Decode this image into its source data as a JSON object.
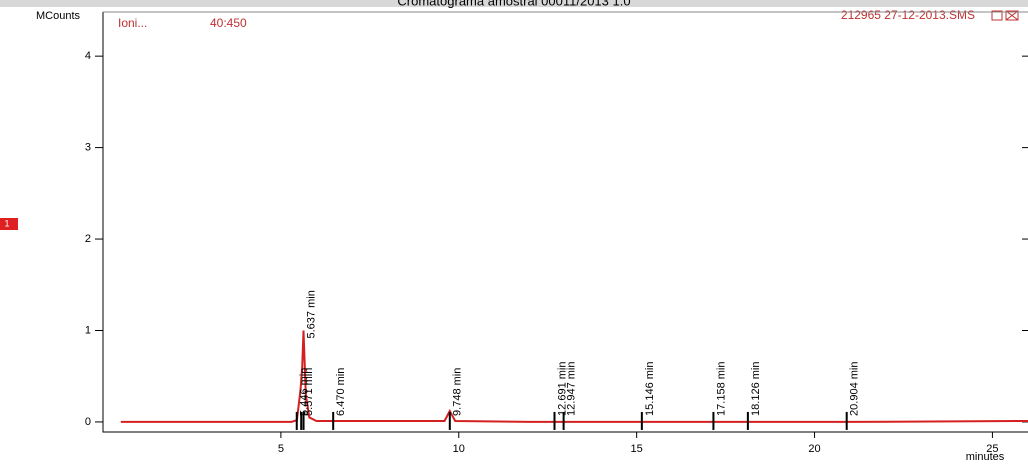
{
  "chart_data": {
    "type": "line",
    "title": "Cromatograma amostral 00011/2013 1.0",
    "ylabel": "MCounts",
    "xlabel": "minutes",
    "ion_label": "Ioni...",
    "mass_range": "40:450",
    "file_name": "212965 27-12-2013.SMS",
    "side_marker": "1",
    "xlim": [
      0,
      26
    ],
    "ylim": [
      -0.11,
      4.45
    ],
    "xticks": [
      5,
      10,
      15,
      20,
      25
    ],
    "yticks": [
      0,
      1,
      2,
      3,
      4
    ],
    "series": [
      {
        "name": "Ioni...",
        "color": "#d42020",
        "x": [
          0.5,
          5.3,
          5.45,
          5.55,
          5.6,
          5.637,
          5.7,
          5.8,
          6.0,
          9.6,
          9.748,
          9.9,
          12,
          15,
          18,
          21,
          26
        ],
        "values": [
          0,
          0,
          0.02,
          0.35,
          0.6,
          1.0,
          0.3,
          0.05,
          0.01,
          0.01,
          0.12,
          0.01,
          0,
          0,
          0,
          0,
          0.01
        ]
      }
    ],
    "peaks": [
      {
        "label": "5.446 min",
        "time": 5.446
      },
      {
        "label": "5.637 min",
        "time": 5.637
      },
      {
        "label": "5.571 min",
        "time": 5.571
      },
      {
        "label": "6.470 min",
        "time": 6.47
      },
      {
        "label": "9.748 min",
        "time": 9.748
      },
      {
        "label": "12.691 min",
        "time": 12.691
      },
      {
        "label": "12.947 min",
        "time": 12.947
      },
      {
        "label": "15.146 min",
        "time": 15.146
      },
      {
        "label": "17.158 min",
        "time": 17.158
      },
      {
        "label": "18.126 min",
        "time": 18.126
      },
      {
        "label": "20.904 min",
        "time": 20.904
      }
    ]
  }
}
